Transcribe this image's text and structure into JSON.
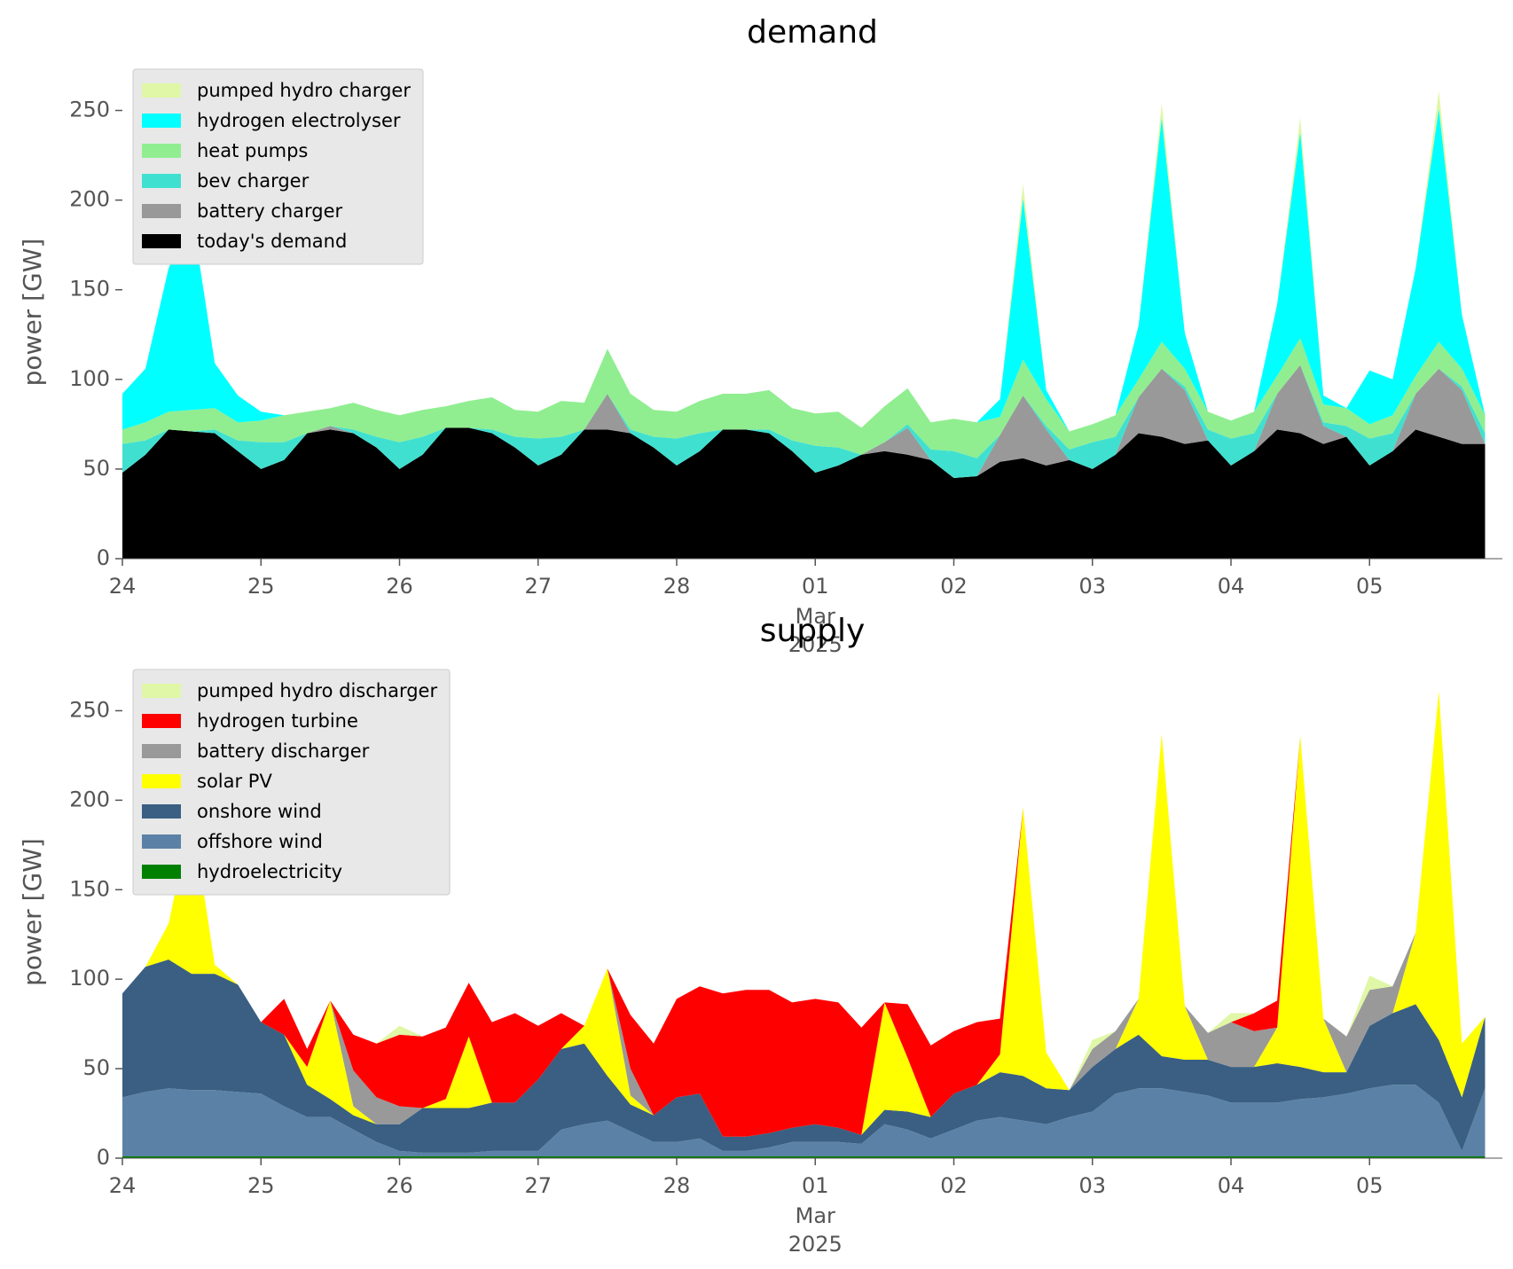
{
  "chart_data": [
    {
      "type": "stacked_area",
      "title": "demand",
      "ylabel": "power [GW]",
      "legend": "upper left",
      "x": [
        "2025-02-24T00:00",
        "2025-02-24T04:00",
        "2025-02-24T08:00",
        "2025-02-24T12:00",
        "2025-02-24T16:00",
        "2025-02-24T20:00",
        "2025-02-25T00:00",
        "2025-02-25T04:00",
        "2025-02-25T08:00",
        "2025-02-25T12:00",
        "2025-02-25T16:00",
        "2025-02-25T20:00",
        "2025-02-26T00:00",
        "2025-02-26T04:00",
        "2025-02-26T08:00",
        "2025-02-26T12:00",
        "2025-02-26T16:00",
        "2025-02-26T20:00",
        "2025-02-27T00:00",
        "2025-02-27T04:00",
        "2025-02-27T08:00",
        "2025-02-27T12:00",
        "2025-02-27T16:00",
        "2025-02-27T20:00",
        "2025-02-28T00:00",
        "2025-02-28T04:00",
        "2025-02-28T08:00",
        "2025-02-28T12:00",
        "2025-02-28T16:00",
        "2025-02-28T20:00",
        "2025-03-01T00:00",
        "2025-03-01T04:00",
        "2025-03-01T08:00",
        "2025-03-01T12:00",
        "2025-03-01T16:00",
        "2025-03-01T20:00",
        "2025-03-02T00:00",
        "2025-03-02T04:00",
        "2025-03-02T08:00",
        "2025-03-02T12:00",
        "2025-03-02T16:00",
        "2025-03-02T20:00",
        "2025-03-03T00:00",
        "2025-03-03T04:00",
        "2025-03-03T08:00",
        "2025-03-03T12:00",
        "2025-03-03T16:00",
        "2025-03-03T20:00",
        "2025-03-04T00:00",
        "2025-03-04T04:00",
        "2025-03-04T08:00",
        "2025-03-04T12:00",
        "2025-03-04T16:00",
        "2025-03-04T20:00",
        "2025-03-05T00:00",
        "2025-03-05T04:00",
        "2025-03-05T08:00",
        "2025-03-05T12:00",
        "2025-03-05T16:00",
        "2025-03-05T20:00"
      ],
      "series": [
        {
          "name": "pumped hydro charger",
          "color": "#dff7a6",
          "values": [
            0,
            0,
            0,
            0,
            0,
            0,
            0,
            0,
            0,
            0,
            0,
            0,
            0,
            0,
            0,
            0,
            0,
            0,
            0,
            0,
            0,
            0,
            0,
            0,
            0,
            0,
            0,
            0,
            0,
            0,
            0,
            0,
            0,
            0,
            0,
            0,
            0,
            0,
            0,
            8,
            0,
            0,
            0,
            0,
            0,
            8,
            0,
            0,
            0,
            0,
            0,
            8,
            0,
            0,
            0,
            0,
            0,
            10,
            0,
            0
          ]
        },
        {
          "name": "hydrogen electrolyser",
          "color": "#00ffff",
          "values": [
            20,
            30,
            80,
            110,
            25,
            15,
            5,
            0,
            0,
            0,
            0,
            0,
            0,
            0,
            0,
            0,
            0,
            0,
            0,
            0,
            0,
            0,
            0,
            0,
            0,
            0,
            0,
            0,
            0,
            0,
            0,
            0,
            0,
            0,
            0,
            0,
            0,
            0,
            10,
            90,
            5,
            0,
            0,
            0,
            30,
            125,
            20,
            0,
            0,
            0,
            40,
            115,
            5,
            0,
            30,
            20,
            60,
            130,
            30,
            0
          ]
        },
        {
          "name": "heat pumps",
          "color": "#90ee90",
          "values": [
            8,
            10,
            10,
            12,
            12,
            10,
            12,
            15,
            12,
            10,
            15,
            15,
            15,
            15,
            12,
            15,
            18,
            15,
            15,
            20,
            15,
            25,
            20,
            15,
            15,
            18,
            20,
            20,
            22,
            18,
            18,
            20,
            15,
            20,
            20,
            15,
            18,
            20,
            10,
            20,
            15,
            10,
            10,
            12,
            10,
            15,
            10,
            10,
            10,
            12,
            10,
            15,
            10,
            10,
            8,
            10,
            10,
            15,
            10,
            10
          ]
        },
        {
          "name": "bev charger",
          "color": "#40e0d0",
          "values": [
            16,
            8,
            0,
            0,
            2,
            6,
            15,
            10,
            0,
            0,
            2,
            6,
            15,
            10,
            0,
            0,
            2,
            6,
            15,
            10,
            0,
            0,
            2,
            6,
            15,
            10,
            0,
            0,
            2,
            6,
            15,
            10,
            0,
            0,
            2,
            6,
            15,
            10,
            0,
            0,
            2,
            6,
            15,
            10,
            0,
            0,
            2,
            6,
            15,
            10,
            0,
            0,
            2,
            6,
            15,
            10,
            0,
            0,
            2,
            6
          ]
        },
        {
          "name": "battery charger",
          "color": "#999999",
          "values": [
            0,
            0,
            0,
            0,
            0,
            0,
            0,
            0,
            0,
            2,
            0,
            0,
            0,
            0,
            0,
            0,
            0,
            0,
            0,
            0,
            0,
            20,
            0,
            0,
            0,
            0,
            0,
            0,
            0,
            0,
            0,
            0,
            0,
            5,
            15,
            0,
            0,
            0,
            15,
            35,
            20,
            0,
            0,
            0,
            20,
            38,
            30,
            0,
            0,
            0,
            20,
            38,
            10,
            0,
            0,
            0,
            20,
            38,
            30,
            0
          ]
        },
        {
          "name": "today's demand",
          "color": "#000000",
          "values": [
            48,
            58,
            72,
            71,
            70,
            60,
            50,
            55,
            70,
            72,
            70,
            62,
            50,
            58,
            73,
            73,
            70,
            62,
            52,
            58,
            72,
            72,
            70,
            62,
            52,
            60,
            72,
            72,
            70,
            60,
            48,
            52,
            58,
            60,
            58,
            55,
            45,
            46,
            54,
            56,
            52,
            55,
            50,
            58,
            70,
            68,
            64,
            66,
            52,
            60,
            72,
            70,
            64,
            68,
            52,
            60,
            72,
            68,
            64,
            64
          ]
        }
      ],
      "xlim": [
        "2025-02-24T00:00",
        "2025-03-05T23:00"
      ],
      "xticks": [
        {
          "value": "2025-02-24T00:00",
          "label": "24"
        },
        {
          "value": "2025-02-25T00:00",
          "label": "25"
        },
        {
          "value": "2025-02-26T00:00",
          "label": "26"
        },
        {
          "value": "2025-02-27T00:00",
          "label": "27"
        },
        {
          "value": "2025-02-28T00:00",
          "label": "28"
        },
        {
          "value": "2025-03-01T00:00",
          "label": "01"
        },
        {
          "value": "2025-03-02T00:00",
          "label": "02"
        },
        {
          "value": "2025-03-03T00:00",
          "label": "03"
        },
        {
          "value": "2025-03-04T00:00",
          "label": "04"
        },
        {
          "value": "2025-03-05T00:00",
          "label": "05"
        }
      ],
      "x_sublabel": [
        "Mar",
        "2025"
      ],
      "ylim": [
        0,
        275
      ],
      "yticks": [
        0,
        50,
        100,
        150,
        200,
        250
      ]
    },
    {
      "type": "stacked_area",
      "title": "supply",
      "ylabel": "power [GW]",
      "legend": "upper left",
      "x": [
        "2025-02-24T00:00",
        "2025-02-24T04:00",
        "2025-02-24T08:00",
        "2025-02-24T12:00",
        "2025-02-24T16:00",
        "2025-02-24T20:00",
        "2025-02-25T00:00",
        "2025-02-25T04:00",
        "2025-02-25T08:00",
        "2025-02-25T12:00",
        "2025-02-25T16:00",
        "2025-02-25T20:00",
        "2025-02-26T00:00",
        "2025-02-26T04:00",
        "2025-02-26T08:00",
        "2025-02-26T12:00",
        "2025-02-26T16:00",
        "2025-02-26T20:00",
        "2025-02-27T00:00",
        "2025-02-27T04:00",
        "2025-02-27T08:00",
        "2025-02-27T12:00",
        "2025-02-27T16:00",
        "2025-02-27T20:00",
        "2025-02-28T00:00",
        "2025-02-28T04:00",
        "2025-02-28T08:00",
        "2025-02-28T12:00",
        "2025-02-28T16:00",
        "2025-02-28T20:00",
        "2025-03-01T00:00",
        "2025-03-01T04:00",
        "2025-03-01T08:00",
        "2025-03-01T12:00",
        "2025-03-01T16:00",
        "2025-03-01T20:00",
        "2025-03-02T00:00",
        "2025-03-02T04:00",
        "2025-03-02T08:00",
        "2025-03-02T12:00",
        "2025-03-02T16:00",
        "2025-03-02T20:00",
        "2025-03-03T00:00",
        "2025-03-03T04:00",
        "2025-03-03T08:00",
        "2025-03-03T12:00",
        "2025-03-03T16:00",
        "2025-03-03T20:00",
        "2025-03-04T00:00",
        "2025-03-04T04:00",
        "2025-03-04T08:00",
        "2025-03-04T12:00",
        "2025-03-04T16:00",
        "2025-03-04T20:00",
        "2025-03-05T00:00",
        "2025-03-05T04:00",
        "2025-03-05T08:00",
        "2025-03-05T12:00",
        "2025-03-05T16:00",
        "2025-03-05T20:00"
      ],
      "series": [
        {
          "name": "pumped hydro discharger",
          "color": "#dff7a6",
          "values": [
            0,
            0,
            0,
            0,
            0,
            0,
            0,
            0,
            0,
            0,
            0,
            0,
            5,
            0,
            0,
            0,
            0,
            0,
            0,
            0,
            0,
            0,
            0,
            0,
            0,
            0,
            0,
            0,
            0,
            0,
            0,
            0,
            0,
            0,
            0,
            0,
            0,
            0,
            0,
            0,
            0,
            0,
            5,
            0,
            0,
            0,
            0,
            0,
            5,
            0,
            0,
            0,
            0,
            0,
            8,
            0,
            0,
            0,
            0,
            0
          ]
        },
        {
          "name": "hydrogen turbine",
          "color": "#ff0000",
          "values": [
            0,
            0,
            0,
            0,
            0,
            0,
            0,
            20,
            10,
            0,
            20,
            30,
            40,
            40,
            40,
            30,
            45,
            50,
            30,
            20,
            0,
            0,
            30,
            40,
            55,
            60,
            80,
            82,
            80,
            70,
            70,
            70,
            60,
            0,
            30,
            40,
            35,
            35,
            20,
            0,
            0,
            0,
            0,
            0,
            0,
            0,
            0,
            0,
            0,
            10,
            15,
            0,
            0,
            0,
            0,
            0,
            0,
            0,
            0,
            0
          ]
        },
        {
          "name": "battery discharger",
          "color": "#999999",
          "values": [
            0,
            0,
            0,
            0,
            0,
            0,
            0,
            0,
            0,
            0,
            20,
            15,
            10,
            0,
            0,
            0,
            0,
            0,
            0,
            0,
            0,
            0,
            15,
            0,
            0,
            0,
            0,
            0,
            0,
            0,
            0,
            0,
            0,
            0,
            0,
            0,
            0,
            0,
            0,
            0,
            0,
            0,
            10,
            10,
            0,
            0,
            0,
            15,
            25,
            20,
            0,
            0,
            0,
            20,
            20,
            15,
            0,
            0,
            0,
            0
          ]
        },
        {
          "name": "solar PV",
          "color": "#ffff00",
          "values": [
            0,
            0,
            20,
            90,
            5,
            0,
            0,
            0,
            10,
            55,
            5,
            0,
            0,
            0,
            5,
            40,
            0,
            0,
            0,
            0,
            10,
            60,
            5,
            0,
            0,
            0,
            0,
            0,
            0,
            0,
            0,
            0,
            0,
            60,
            30,
            0,
            0,
            0,
            10,
            150,
            20,
            0,
            0,
            0,
            20,
            180,
            30,
            0,
            0,
            0,
            20,
            185,
            30,
            0,
            0,
            0,
            40,
            195,
            30,
            0
          ]
        },
        {
          "name": "onshore wind",
          "color": "#3a5f82",
          "values": [
            58,
            70,
            72,
            65,
            65,
            60,
            40,
            40,
            18,
            10,
            8,
            10,
            15,
            25,
            25,
            25,
            27,
            27,
            40,
            45,
            45,
            25,
            15,
            15,
            25,
            25,
            8,
            8,
            8,
            8,
            10,
            8,
            5,
            8,
            10,
            12,
            20,
            20,
            25,
            25,
            20,
            15,
            25,
            25,
            30,
            18,
            18,
            20,
            20,
            20,
            22,
            18,
            14,
            12,
            35,
            40,
            45,
            35,
            30,
            40
          ]
        },
        {
          "name": "offshore wind",
          "color": "#5b82a6",
          "values": [
            33,
            36,
            38,
            37,
            37,
            36,
            35,
            28,
            22,
            22,
            15,
            8,
            3,
            2,
            2,
            2,
            3,
            3,
            3,
            15,
            18,
            20,
            14,
            8,
            8,
            10,
            3,
            3,
            5,
            8,
            8,
            8,
            7,
            18,
            15,
            10,
            15,
            20,
            22,
            20,
            18,
            22,
            25,
            35,
            38,
            38,
            36,
            34,
            30,
            30,
            30,
            32,
            33,
            35,
            38,
            40,
            40,
            30,
            3,
            38
          ]
        },
        {
          "name": "hydroelectricity",
          "color": "#008000",
          "values": [
            1,
            1,
            1,
            1,
            1,
            1,
            1,
            1,
            1,
            1,
            1,
            1,
            1,
            1,
            1,
            1,
            1,
            1,
            1,
            1,
            1,
            1,
            1,
            1,
            1,
            1,
            1,
            1,
            1,
            1,
            1,
            1,
            1,
            1,
            1,
            1,
            1,
            1,
            1,
            1,
            1,
            1,
            1,
            1,
            1,
            1,
            1,
            1,
            1,
            1,
            1,
            1,
            1,
            1,
            1,
            1,
            1,
            1,
            1,
            1
          ]
        }
      ],
      "xlim": [
        "2025-02-24T00:00",
        "2025-03-05T23:00"
      ],
      "xticks": [
        {
          "value": "2025-02-24T00:00",
          "label": "24"
        },
        {
          "value": "2025-02-25T00:00",
          "label": "25"
        },
        {
          "value": "2025-02-26T00:00",
          "label": "26"
        },
        {
          "value": "2025-02-27T00:00",
          "label": "27"
        },
        {
          "value": "2025-02-28T00:00",
          "label": "28"
        },
        {
          "value": "2025-03-01T00:00",
          "label": "01"
        },
        {
          "value": "2025-03-02T00:00",
          "label": "02"
        },
        {
          "value": "2025-03-03T00:00",
          "label": "03"
        },
        {
          "value": "2025-03-04T00:00",
          "label": "04"
        },
        {
          "value": "2025-03-05T00:00",
          "label": "05"
        }
      ],
      "x_sublabel": [
        "Mar",
        "2025"
      ],
      "ylim": [
        0,
        275
      ],
      "yticks": [
        0,
        50,
        100,
        150,
        200,
        250
      ]
    }
  ]
}
